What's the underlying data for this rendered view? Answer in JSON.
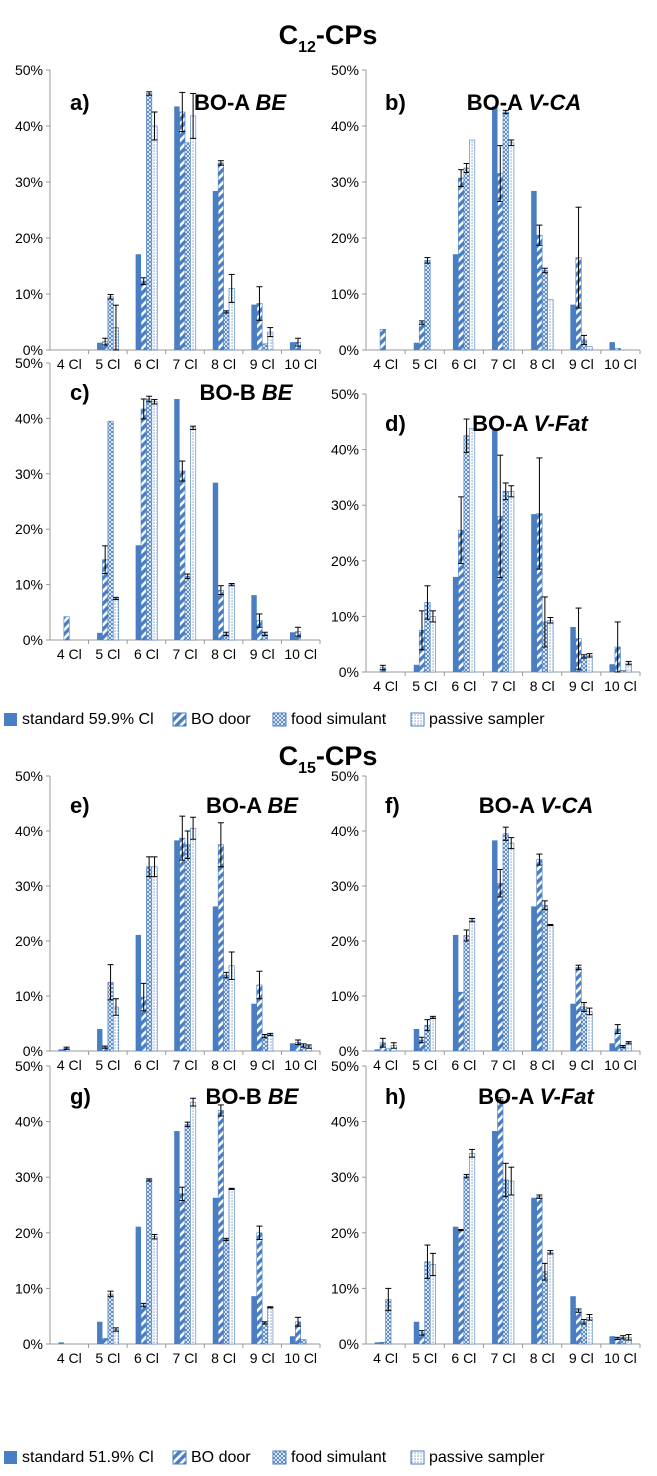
{
  "section_titles": [
    {
      "main": "C",
      "sub": "12",
      "rest": "-CPs"
    },
    {
      "main": "C",
      "sub": "15",
      "rest": "-CPs"
    }
  ],
  "legends": [
    {
      "entries": [
        "standard 59.9% Cl",
        "BO door",
        "food simulant",
        "passive sampler"
      ]
    },
    {
      "entries": [
        "standard 51.9% Cl",
        "BO door",
        "food simulant",
        "passive sampler"
      ]
    }
  ],
  "colors": {
    "accent": "#4a7ec2",
    "errorbar": "#000000",
    "axis": "#9a9a9a",
    "text": "#000000"
  },
  "chart_data": [
    {
      "type": "bar",
      "panel_label": "a)",
      "sample": "BO-A",
      "medium": "BE",
      "categories": [
        "4 Cl",
        "5 Cl",
        "6 Cl",
        "7 Cl",
        "8 Cl",
        "9 Cl",
        "10 Cl"
      ],
      "ylim": [
        0,
        50
      ],
      "yticks": [
        "0%",
        "10%",
        "20%",
        "30%",
        "40%",
        "50%"
      ],
      "series": [
        {
          "name": "standard 59.9% Cl",
          "values": [
            0,
            1.3,
            17.1,
            43.5,
            28.4,
            8.1,
            1.4
          ],
          "errors": [
            0,
            0,
            0,
            0,
            0,
            0,
            0
          ]
        },
        {
          "name": "BO door",
          "values": [
            0,
            1.5,
            12.3,
            42.5,
            33.4,
            8.3,
            1.4
          ],
          "errors": [
            0,
            0.6,
            0.6,
            3.5,
            0.4,
            3.0,
            0.7
          ]
        },
        {
          "name": "food simulant",
          "values": [
            0,
            9.5,
            45.8,
            37.0,
            6.8,
            1.1,
            0
          ],
          "errors": [
            0,
            0.4,
            0.3,
            0,
            0.2,
            0,
            0
          ]
        },
        {
          "name": "passive sampler",
          "values": [
            0,
            4.0,
            40.0,
            41.8,
            11.0,
            3.2,
            0
          ],
          "errors": [
            0,
            4.0,
            2.5,
            4.0,
            2.5,
            0.8,
            0
          ]
        }
      ]
    },
    {
      "type": "bar",
      "panel_label": "b)",
      "sample": "BO-A",
      "medium": "V-CA",
      "categories": [
        "4 Cl",
        "5 Cl",
        "6 Cl",
        "7 Cl",
        "8 Cl",
        "9 Cl",
        "10 Cl"
      ],
      "ylim": [
        0,
        50
      ],
      "yticks": [
        "0%",
        "10%",
        "20%",
        "30%",
        "40%",
        "50%"
      ],
      "series": [
        {
          "name": "standard 59.9% Cl",
          "values": [
            0,
            1.3,
            17.1,
            43.5,
            28.4,
            8.1,
            1.4
          ],
          "errors": [
            0,
            0,
            0,
            0,
            0,
            0,
            0
          ]
        },
        {
          "name": "BO door",
          "values": [
            3.7,
            4.9,
            30.7,
            31.5,
            20.5,
            16.5,
            0.3
          ],
          "errors": [
            0,
            0.3,
            1.5,
            5.0,
            1.8,
            9.0,
            0
          ]
        },
        {
          "name": "food simulant",
          "values": [
            0,
            16.0,
            32.5,
            42.5,
            14.2,
            1.8,
            0
          ],
          "errors": [
            0,
            0.5,
            0.8,
            0.3,
            0.4,
            0.8,
            0
          ]
        },
        {
          "name": "passive sampler",
          "values": [
            0,
            0,
            37.5,
            37.0,
            9.0,
            0.6,
            0
          ],
          "errors": [
            0,
            0,
            0,
            0.5,
            0,
            0,
            0
          ]
        }
      ]
    },
    {
      "type": "bar",
      "panel_label": "c)",
      "sample": "BO-B",
      "medium": "BE",
      "categories": [
        "4 Cl",
        "5 Cl",
        "6 Cl",
        "7 Cl",
        "8 Cl",
        "9 Cl",
        "10 Cl"
      ],
      "ylim": [
        0,
        50
      ],
      "yticks": [
        "0%",
        "10%",
        "20%",
        "30%",
        "40%",
        "50%"
      ],
      "series": [
        {
          "name": "standard 59.9% Cl",
          "values": [
            0,
            1.3,
            17.1,
            43.5,
            28.4,
            8.1,
            1.4
          ],
          "errors": [
            0,
            0,
            0,
            0,
            0,
            0,
            0
          ]
        },
        {
          "name": "BO door",
          "values": [
            4.2,
            14.5,
            41.7,
            30.5,
            9.0,
            3.5,
            1.5
          ],
          "errors": [
            0,
            2.5,
            1.8,
            1.8,
            0.8,
            1.2,
            0.8
          ]
        },
        {
          "name": "food simulant",
          "values": [
            0,
            39.5,
            43.5,
            11.5,
            1.1,
            1.1,
            0
          ],
          "errors": [
            0,
            0,
            0.5,
            0.4,
            0.3,
            0.3,
            0
          ]
        },
        {
          "name": "passive sampler",
          "values": [
            0,
            7.5,
            43.0,
            38.3,
            10.0,
            0,
            0
          ],
          "errors": [
            0,
            0.2,
            0.4,
            0.3,
            0.2,
            0,
            0
          ]
        }
      ]
    },
    {
      "type": "bar",
      "panel_label": "d)",
      "sample": "BO-A",
      "medium": "V-Fat",
      "categories": [
        "4 Cl",
        "5 Cl",
        "6 Cl",
        "7 Cl",
        "8 Cl",
        "9 Cl",
        "10 Cl"
      ],
      "ylim": [
        0,
        50
      ],
      "yticks": [
        "0%",
        "10%",
        "20%",
        "30%",
        "40%",
        "50%"
      ],
      "series": [
        {
          "name": "standard 59.9% Cl",
          "values": [
            0,
            1.3,
            17.1,
            43.5,
            28.4,
            8.1,
            1.4
          ],
          "errors": [
            0,
            0,
            0,
            0,
            0,
            0,
            0
          ]
        },
        {
          "name": "BO door",
          "values": [
            0.8,
            7.5,
            25.5,
            28.0,
            28.5,
            6.0,
            4.5
          ],
          "errors": [
            0.4,
            3.5,
            6.0,
            11.0,
            10.0,
            5.5,
            4.5
          ]
        },
        {
          "name": "food simulant",
          "values": [
            0,
            12.5,
            42.5,
            32.5,
            9.0,
            2.8,
            0.3
          ],
          "errors": [
            0,
            3.0,
            3.0,
            1.5,
            4.5,
            0.3,
            0
          ]
        },
        {
          "name": "passive sampler",
          "values": [
            0,
            10.0,
            43.8,
            32.5,
            9.3,
            3.0,
            1.6
          ],
          "errors": [
            0,
            1.0,
            0,
            1.0,
            0.5,
            0.3,
            0.3
          ]
        }
      ]
    },
    {
      "type": "bar",
      "panel_label": "e)",
      "sample": "BO-A",
      "medium": "BE",
      "categories": [
        "4 Cl",
        "5 Cl",
        "6 Cl",
        "7 Cl",
        "8 Cl",
        "9 Cl",
        "10 Cl"
      ],
      "ylim": [
        0,
        50
      ],
      "yticks": [
        "0%",
        "10%",
        "20%",
        "30%",
        "40%",
        "50%"
      ],
      "series": [
        {
          "name": "standard 51.9% Cl",
          "values": [
            0.3,
            4.0,
            21.1,
            38.3,
            26.3,
            8.6,
            1.4
          ],
          "errors": [
            0,
            0,
            0,
            0,
            0,
            0,
            0
          ]
        },
        {
          "name": "BO door",
          "values": [
            0.5,
            0.7,
            9.8,
            38.7,
            37.5,
            12.0,
            1.6
          ],
          "errors": [
            0.2,
            0.2,
            2.5,
            4.0,
            4.0,
            2.5,
            0.4
          ]
        },
        {
          "name": "food simulant",
          "values": [
            0,
            12.5,
            33.5,
            37.5,
            13.8,
            2.7,
            1.0
          ],
          "errors": [
            0,
            3.2,
            1.8,
            2.5,
            0.5,
            0.3,
            0.3
          ]
        },
        {
          "name": "passive sampler",
          "values": [
            0,
            8.0,
            33.5,
            40.5,
            15.5,
            3.0,
            0.8
          ],
          "errors": [
            0,
            1.5,
            1.8,
            2.0,
            2.5,
            0.2,
            0.3
          ]
        }
      ]
    },
    {
      "type": "bar",
      "panel_label": "f)",
      "sample": "BO-A",
      "medium": "V-CA",
      "categories": [
        "4 Cl",
        "5 Cl",
        "6 Cl",
        "7 Cl",
        "8 Cl",
        "9 Cl",
        "10 Cl"
      ],
      "ylim": [
        0,
        50
      ],
      "yticks": [
        "0%",
        "10%",
        "20%",
        "30%",
        "40%",
        "50%"
      ],
      "series": [
        {
          "name": "standard 51.9% Cl",
          "values": [
            0.3,
            4.0,
            21.1,
            38.3,
            26.3,
            8.6,
            1.4
          ],
          "errors": [
            0,
            0,
            0,
            0,
            0,
            0,
            0
          ]
        },
        {
          "name": "BO door",
          "values": [
            1.5,
            2.0,
            10.7,
            30.5,
            34.8,
            15.2,
            4.0
          ],
          "errors": [
            0.8,
            0.5,
            0,
            2.5,
            1.0,
            0.4,
            0.8
          ]
        },
        {
          "name": "food simulant",
          "values": [
            0.4,
            4.7,
            21.0,
            39.5,
            26.5,
            8.0,
            0.8
          ],
          "errors": [
            0,
            1.0,
            1.0,
            1.2,
            0.8,
            0.8,
            0.2
          ]
        },
        {
          "name": "passive sampler",
          "values": [
            1.0,
            6.1,
            23.8,
            37.8,
            22.9,
            7.2,
            1.5
          ],
          "errors": [
            0.5,
            0.2,
            0.3,
            1.0,
            0.1,
            0.6,
            0.2
          ]
        }
      ]
    },
    {
      "type": "bar",
      "panel_label": "g)",
      "sample": "BO-B",
      "medium": "BE",
      "categories": [
        "4 Cl",
        "5 Cl",
        "6 Cl",
        "7 Cl",
        "8 Cl",
        "9 Cl",
        "10 Cl"
      ],
      "ylim": [
        0,
        50
      ],
      "yticks": [
        "0%",
        "10%",
        "20%",
        "30%",
        "40%",
        "50%"
      ],
      "series": [
        {
          "name": "standard 51.9% Cl",
          "values": [
            0.3,
            4.0,
            21.1,
            38.3,
            26.3,
            8.6,
            1.4
          ],
          "errors": [
            0,
            0,
            0,
            0,
            0,
            0,
            0
          ]
        },
        {
          "name": "BO door",
          "values": [
            0,
            1.0,
            7.0,
            27.0,
            42.0,
            20.0,
            4.0
          ],
          "errors": [
            0,
            0,
            0.3,
            1.2,
            1.0,
            1.2,
            0.8
          ]
        },
        {
          "name": "food simulant",
          "values": [
            0,
            9.0,
            29.5,
            39.5,
            18.8,
            3.8,
            0.8
          ],
          "errors": [
            0,
            0.5,
            0.2,
            0.4,
            0.2,
            0.2,
            0
          ]
        },
        {
          "name": "passive sampler",
          "values": [
            0,
            2.6,
            19.3,
            43.5,
            27.9,
            6.6,
            0
          ],
          "errors": [
            0,
            0.3,
            0.4,
            0.7,
            0.1,
            0.1,
            0
          ]
        }
      ]
    },
    {
      "type": "bar",
      "panel_label": "h)",
      "sample": "BO-A",
      "medium": "V-Fat",
      "categories": [
        "4 Cl",
        "5 Cl",
        "6 Cl",
        "7 Cl",
        "8 Cl",
        "9 Cl",
        "10 Cl"
      ],
      "ylim": [
        0,
        50
      ],
      "yticks": [
        "0%",
        "10%",
        "20%",
        "30%",
        "40%",
        "50%"
      ],
      "series": [
        {
          "name": "standard 51.9% Cl",
          "values": [
            0.3,
            4.0,
            21.1,
            38.3,
            26.3,
            8.6,
            1.4
          ],
          "errors": [
            0,
            0,
            0,
            0,
            0,
            0,
            0
          ]
        },
        {
          "name": "BO door",
          "values": [
            0.3,
            2.0,
            20.5,
            44.0,
            26.5,
            6.0,
            1.0
          ],
          "errors": [
            0,
            0.4,
            0.1,
            0.3,
            0.3,
            0.3,
            0.2
          ]
        },
        {
          "name": "food simulant",
          "values": [
            8.0,
            14.8,
            30.2,
            29.5,
            13.0,
            4.0,
            1.2
          ],
          "errors": [
            2.0,
            3.0,
            0.3,
            3.0,
            1.5,
            0.4,
            0.3
          ]
        },
        {
          "name": "passive sampler",
          "values": [
            0,
            14.3,
            34.3,
            29.3,
            16.5,
            4.8,
            1.2
          ],
          "errors": [
            0,
            2.0,
            0.7,
            2.5,
            0.3,
            0.5,
            0.5
          ]
        }
      ]
    }
  ]
}
